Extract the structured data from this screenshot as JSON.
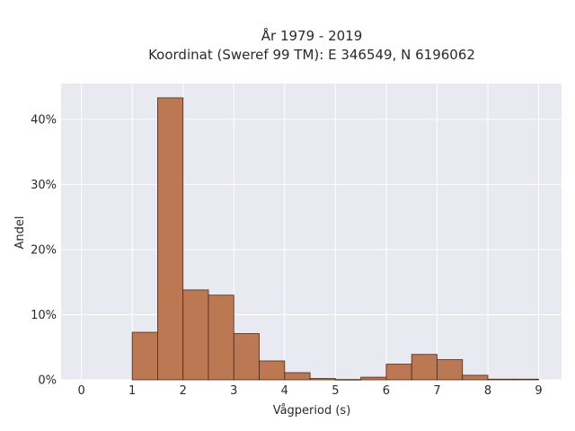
{
  "chart_data": {
    "type": "bar",
    "title_lines": [
      "År 1979 - 2019",
      "Koordinat (Sweref 99 TM): E 346549, N 6196062"
    ],
    "xlabel": "Vågperiod (s)",
    "ylabel": "Andel",
    "xlim": [
      -0.4,
      9.45
    ],
    "ylim": [
      0,
      45.5
    ],
    "x_ticks": [
      0,
      1,
      2,
      3,
      4,
      5,
      6,
      7,
      8,
      9
    ],
    "x_tick_labels": [
      "0",
      "1",
      "2",
      "3",
      "4",
      "5",
      "6",
      "7",
      "8",
      "9"
    ],
    "y_ticks": [
      0,
      10,
      20,
      30,
      40
    ],
    "y_tick_labels": [
      "0%",
      "10%",
      "20%",
      "30%",
      "40%"
    ],
    "bin_width": 0.5,
    "bins": [
      {
        "start": 1.0,
        "value": 7.3
      },
      {
        "start": 1.5,
        "value": 43.3
      },
      {
        "start": 2.0,
        "value": 13.8
      },
      {
        "start": 2.5,
        "value": 13.0
      },
      {
        "start": 3.0,
        "value": 7.1
      },
      {
        "start": 3.5,
        "value": 2.9
      },
      {
        "start": 4.0,
        "value": 1.1
      },
      {
        "start": 4.5,
        "value": 0.2
      },
      {
        "start": 5.0,
        "value": 0.05
      },
      {
        "start": 5.5,
        "value": 0.4
      },
      {
        "start": 6.0,
        "value": 2.4
      },
      {
        "start": 6.5,
        "value": 3.9
      },
      {
        "start": 7.0,
        "value": 3.1
      },
      {
        "start": 7.5,
        "value": 0.7
      },
      {
        "start": 8.0,
        "value": 0.1
      },
      {
        "start": 8.5,
        "value": 0.1
      }
    ],
    "grid": true,
    "colors": {
      "bar": "#bb7852",
      "bar_edge": "#4a2a1a",
      "plot_bg": "#e9e9f1",
      "grid": "#ffffff"
    }
  }
}
